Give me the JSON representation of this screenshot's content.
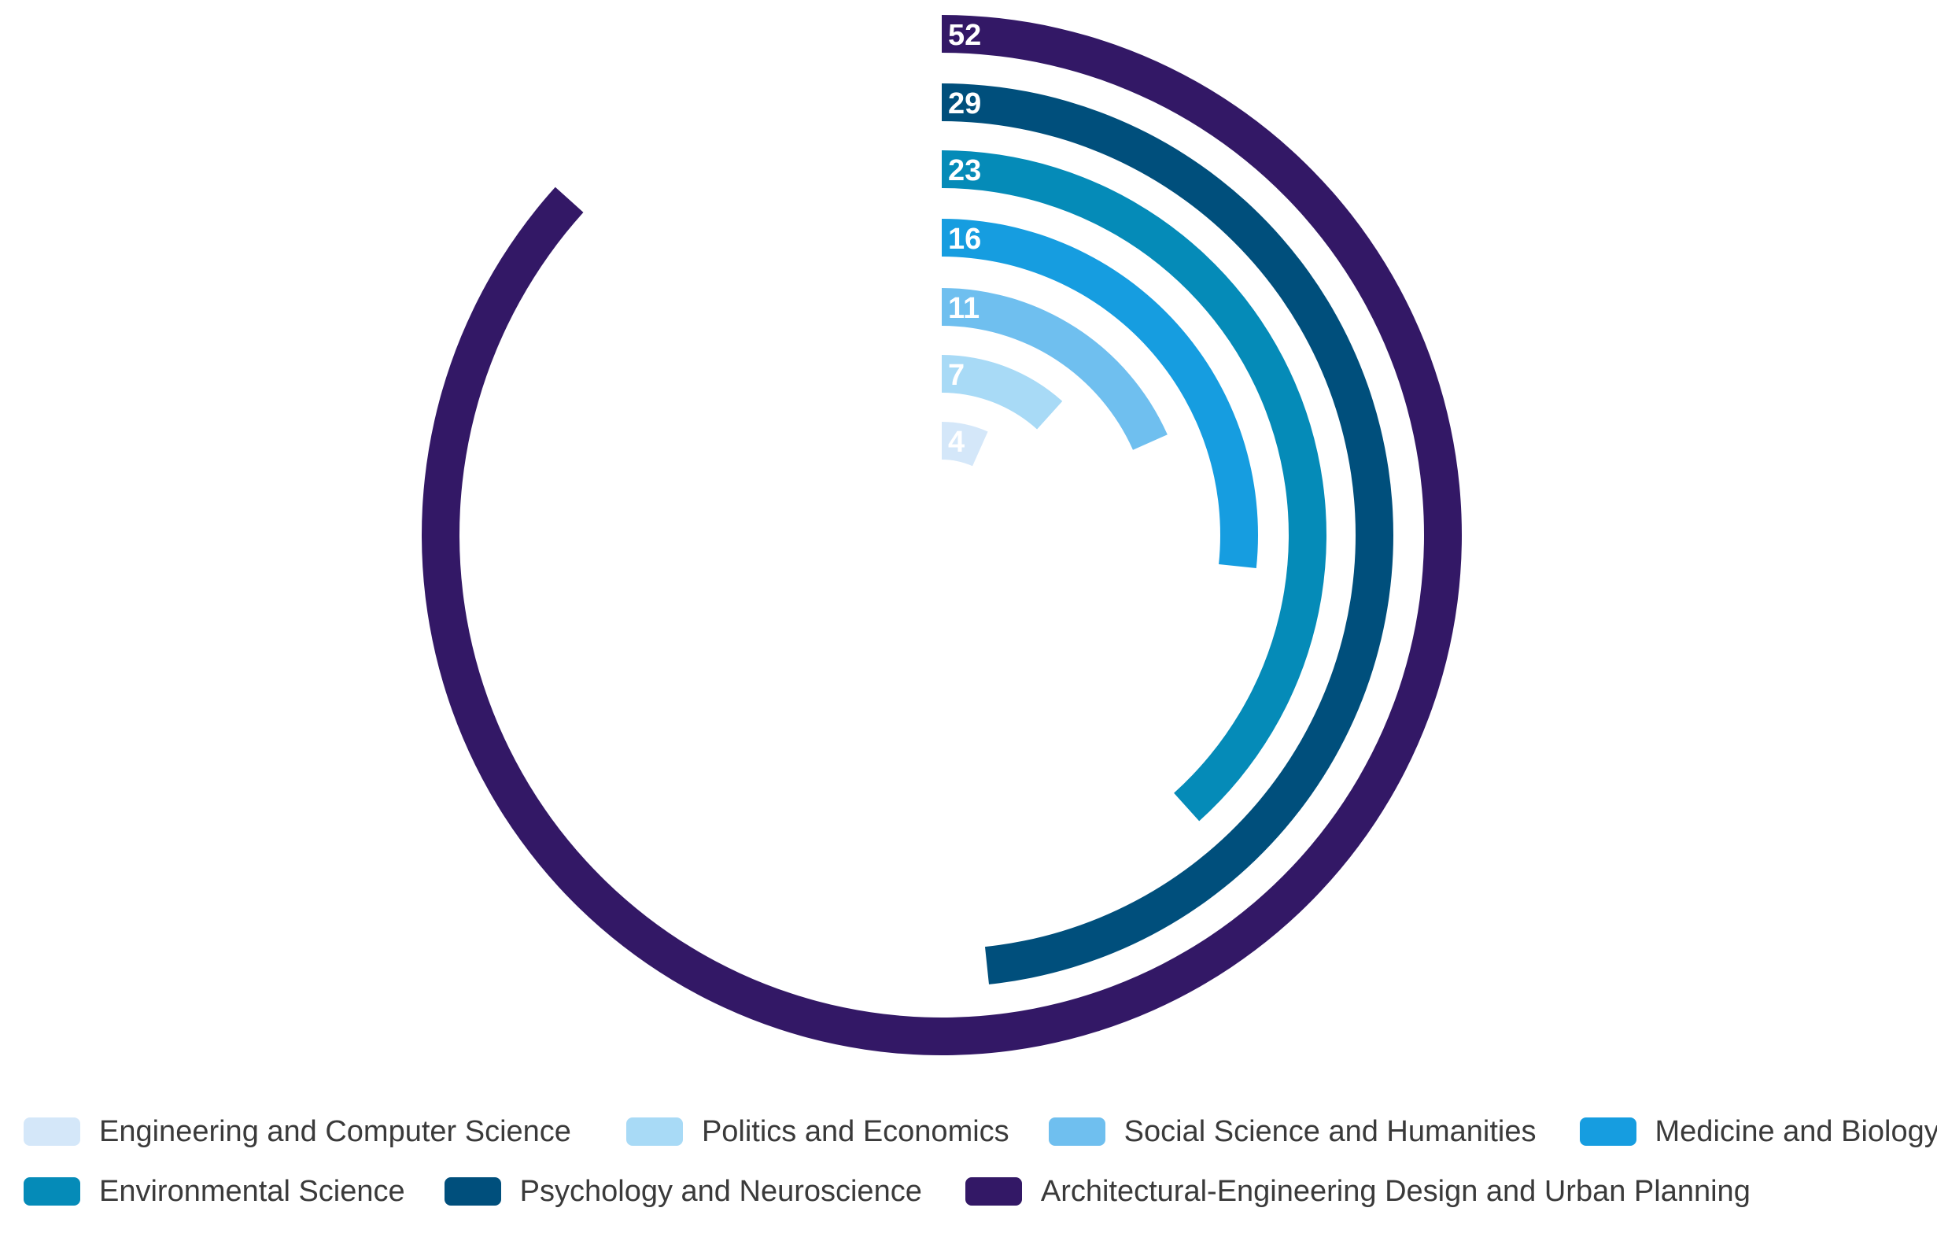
{
  "chart_data": {
    "type": "radial-bar",
    "max_value": 60,
    "categories": [
      "Engineering and Computer Science",
      "Politics and Economics",
      "Social Science and Humanities",
      "Medicine and Biology",
      "Environmental Science",
      "Psychology and Neuroscience",
      "Architectural-Engineering Design and Urban Planning"
    ],
    "values": [
      4,
      7,
      11,
      16,
      23,
      29,
      52
    ],
    "value_labels": [
      "4",
      "7",
      "11",
      "16",
      "23",
      "29",
      "52"
    ],
    "colors": [
      "#d4e7f9",
      "#a8daf6",
      "#6fbfef",
      "#169de0",
      "#058bb8",
      "#004f7c",
      "#331866"
    ],
    "legend_position": "bottom"
  },
  "legend": {
    "rows": [
      [
        0,
        1,
        2,
        3
      ],
      [
        4,
        5,
        6
      ]
    ]
  }
}
